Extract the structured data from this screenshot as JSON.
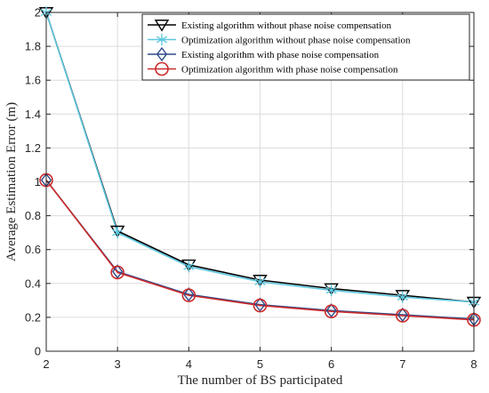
{
  "chart_data": {
    "type": "line",
    "title": "",
    "xlabel": "The number of BS participated",
    "ylabel": "Average Estimation Error (m)",
    "x": [
      2,
      3,
      4,
      5,
      6,
      7,
      8
    ],
    "xlim": [
      2,
      8
    ],
    "ylim": [
      0,
      2
    ],
    "xticks": [
      "2",
      "3",
      "4",
      "5",
      "6",
      "7",
      "8"
    ],
    "yticks": [
      "0",
      "0.2",
      "0.4",
      "0.6",
      "0.8",
      "1",
      "1.2",
      "1.4",
      "1.6",
      "1.8",
      "2"
    ],
    "grid": true,
    "legend_position": "top-right",
    "series": [
      {
        "name": "Existing algorithm without phase noise compensation",
        "values": [
          2.0,
          0.71,
          0.51,
          0.42,
          0.37,
          0.33,
          0.29
        ],
        "color": "#000000",
        "marker": "triangle-down"
      },
      {
        "name": "Optimization algorithm without phase noise compensation",
        "values": [
          2.0,
          0.7,
          0.5,
          0.41,
          0.36,
          0.32,
          0.29
        ],
        "color": "#5ec8e0",
        "marker": "asterisk"
      },
      {
        "name": "Existing algorithm with phase noise compensation",
        "values": [
          1.01,
          0.47,
          0.335,
          0.275,
          0.24,
          0.215,
          0.19
        ],
        "color": "#2e4a8a",
        "marker": "diamond"
      },
      {
        "name": "Optimization algorithm with phase noise compensation",
        "values": [
          1.01,
          0.465,
          0.33,
          0.27,
          0.235,
          0.21,
          0.185
        ],
        "color": "#cc2b2b",
        "marker": "circle"
      }
    ]
  }
}
